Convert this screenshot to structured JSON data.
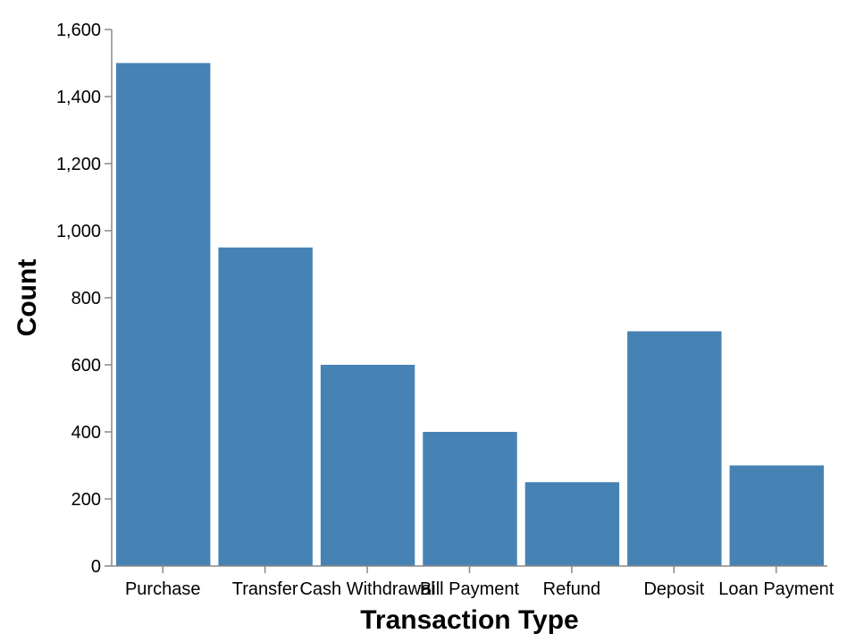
{
  "chart_data": {
    "type": "bar",
    "xlabel": "Transaction Type",
    "ylabel": "Count",
    "categories": [
      "Purchase",
      "Transfer",
      "Cash Withdrawal",
      "Bill Payment",
      "Refund",
      "Deposit",
      "Loan Payment"
    ],
    "values": [
      1500,
      950,
      600,
      400,
      250,
      700,
      300
    ],
    "ylim": [
      0,
      1600
    ],
    "yticks": [
      0,
      200,
      400,
      600,
      800,
      1000,
      1200,
      1400,
      1600
    ],
    "ytick_labels": [
      "0",
      "200",
      "400",
      "600",
      "800",
      "1,000",
      "1,200",
      "1,400",
      "1,600"
    ],
    "bar_color": "#4682b4",
    "grid": false,
    "legend": "none"
  }
}
